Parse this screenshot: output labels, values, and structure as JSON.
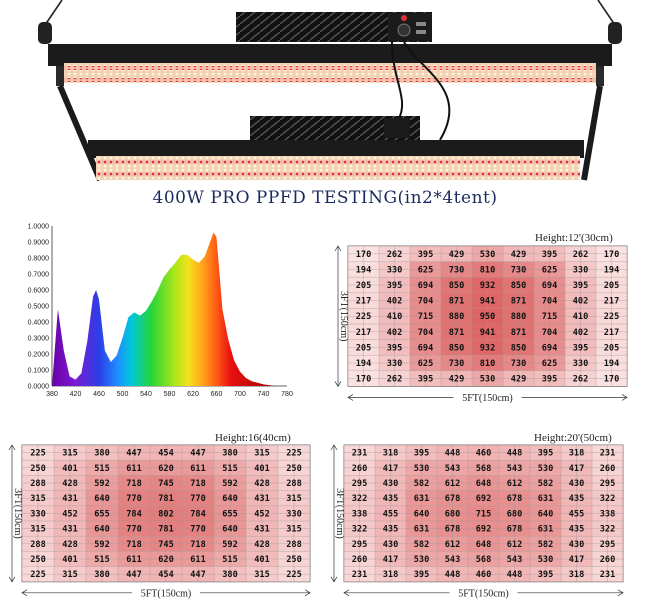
{
  "title": "400W  PRO PPFD TESTING(in2*4tent)",
  "colors": {
    "fixture_dark": "#1b1b1b",
    "led_warm": "#f6d9b8",
    "led_red": "#e0303a",
    "grid_bg": "#fbe4e4",
    "hot": "#d63838",
    "title": "#1a2a5e"
  },
  "spectrum_chart": {
    "type": "area",
    "x_ticks": [
      "380",
      "420",
      "460",
      "500",
      "540",
      "580",
      "620",
      "660",
      "700",
      "740",
      "780"
    ],
    "y_ticks": [
      "1.0000",
      "0.9000",
      "0.8000",
      "0.7000",
      "0.6000",
      "0.5000",
      "0.4000",
      "0.3000",
      "0.2000",
      "0.1000",
      "0.0000"
    ],
    "xlim": [
      380,
      780
    ],
    "ylim": [
      0,
      1
    ],
    "x": [
      380,
      390,
      400,
      410,
      420,
      430,
      440,
      450,
      455,
      460,
      470,
      480,
      490,
      500,
      510,
      520,
      530,
      540,
      550,
      560,
      570,
      580,
      590,
      600,
      610,
      620,
      630,
      640,
      650,
      655,
      660,
      665,
      670,
      680,
      690,
      700,
      710,
      720,
      730,
      740,
      760,
      780
    ],
    "values": [
      0.0,
      0.48,
      0.22,
      0.06,
      0.04,
      0.08,
      0.28,
      0.56,
      0.6,
      0.54,
      0.22,
      0.15,
      0.19,
      0.3,
      0.43,
      0.46,
      0.44,
      0.47,
      0.53,
      0.6,
      0.68,
      0.73,
      0.77,
      0.82,
      0.82,
      0.79,
      0.77,
      0.81,
      0.91,
      0.96,
      0.93,
      0.71,
      0.48,
      0.29,
      0.16,
      0.09,
      0.05,
      0.03,
      0.02,
      0.01,
      0.0,
      0.0
    ]
  },
  "grids": [
    {
      "height_label": "Height:12'(30cm)",
      "side_label": "3FT(150cm)",
      "bottom_label": "5FT(150cm)",
      "rows": [
        [
          "170",
          "262",
          "395",
          "429",
          "530",
          "429",
          "395",
          "262",
          "170"
        ],
        [
          "194",
          "330",
          "625",
          "730",
          "810",
          "730",
          "625",
          "330",
          "194"
        ],
        [
          "205",
          "395",
          "694",
          "850",
          "932",
          "850",
          "694",
          "395",
          "205"
        ],
        [
          "217",
          "402",
          "704",
          "871",
          "941",
          "871",
          "704",
          "402",
          "217"
        ],
        [
          "225",
          "410",
          "715",
          "880",
          "950",
          "880",
          "715",
          "410",
          "225"
        ],
        [
          "217",
          "402",
          "704",
          "871",
          "941",
          "871",
          "704",
          "402",
          "217"
        ],
        [
          "205",
          "395",
          "694",
          "850",
          "932",
          "850",
          "694",
          "395",
          "205"
        ],
        [
          "194",
          "330",
          "625",
          "730",
          "810",
          "730",
          "625",
          "330",
          "194"
        ],
        [
          "170",
          "262",
          "395",
          "429",
          "530",
          "429",
          "395",
          "262",
          "170"
        ]
      ]
    },
    {
      "height_label": "Height:16(40cm)",
      "side_label": "3FT(150cm)",
      "bottom_label": "5FT(150cm)",
      "rows": [
        [
          "225",
          "315",
          "380",
          "447",
          "454",
          "447",
          "380",
          "315",
          "225"
        ],
        [
          "250",
          "401",
          "515",
          "611",
          "620",
          "611",
          "515",
          "401",
          "250"
        ],
        [
          "288",
          "428",
          "592",
          "718",
          "745",
          "718",
          "592",
          "428",
          "288"
        ],
        [
          "315",
          "431",
          "640",
          "770",
          "781",
          "770",
          "640",
          "431",
          "315"
        ],
        [
          "330",
          "452",
          "655",
          "784",
          "802",
          "784",
          "655",
          "452",
          "330"
        ],
        [
          "315",
          "431",
          "640",
          "770",
          "781",
          "770",
          "640",
          "431",
          "315"
        ],
        [
          "288",
          "428",
          "592",
          "718",
          "745",
          "718",
          "592",
          "428",
          "288"
        ],
        [
          "250",
          "401",
          "515",
          "611",
          "620",
          "611",
          "515",
          "401",
          "250"
        ],
        [
          "225",
          "315",
          "380",
          "447",
          "454",
          "447",
          "380",
          "315",
          "225"
        ]
      ]
    },
    {
      "height_label": "Height:20'(50cm)",
      "side_label": "3FT(150cm)",
      "bottom_label": "5FT(150cm)",
      "rows": [
        [
          "231",
          "318",
          "395",
          "448",
          "460",
          "448",
          "395",
          "318",
          "231"
        ],
        [
          "260",
          "417",
          "530",
          "543",
          "568",
          "543",
          "530",
          "417",
          "260"
        ],
        [
          "295",
          "430",
          "582",
          "612",
          "648",
          "612",
          "582",
          "430",
          "295"
        ],
        [
          "322",
          "435",
          "631",
          "678",
          "692",
          "678",
          "631",
          "435",
          "322"
        ],
        [
          "338",
          "455",
          "640",
          "680",
          "715",
          "680",
          "640",
          "455",
          "338"
        ],
        [
          "322",
          "435",
          "631",
          "678",
          "692",
          "678",
          "631",
          "435",
          "322"
        ],
        [
          "295",
          "430",
          "582",
          "612",
          "648",
          "612",
          "582",
          "430",
          "295"
        ],
        [
          "260",
          "417",
          "530",
          "543",
          "568",
          "543",
          "530",
          "417",
          "260"
        ],
        [
          "231",
          "318",
          "395",
          "448",
          "460",
          "448",
          "395",
          "318",
          "231"
        ]
      ]
    }
  ]
}
